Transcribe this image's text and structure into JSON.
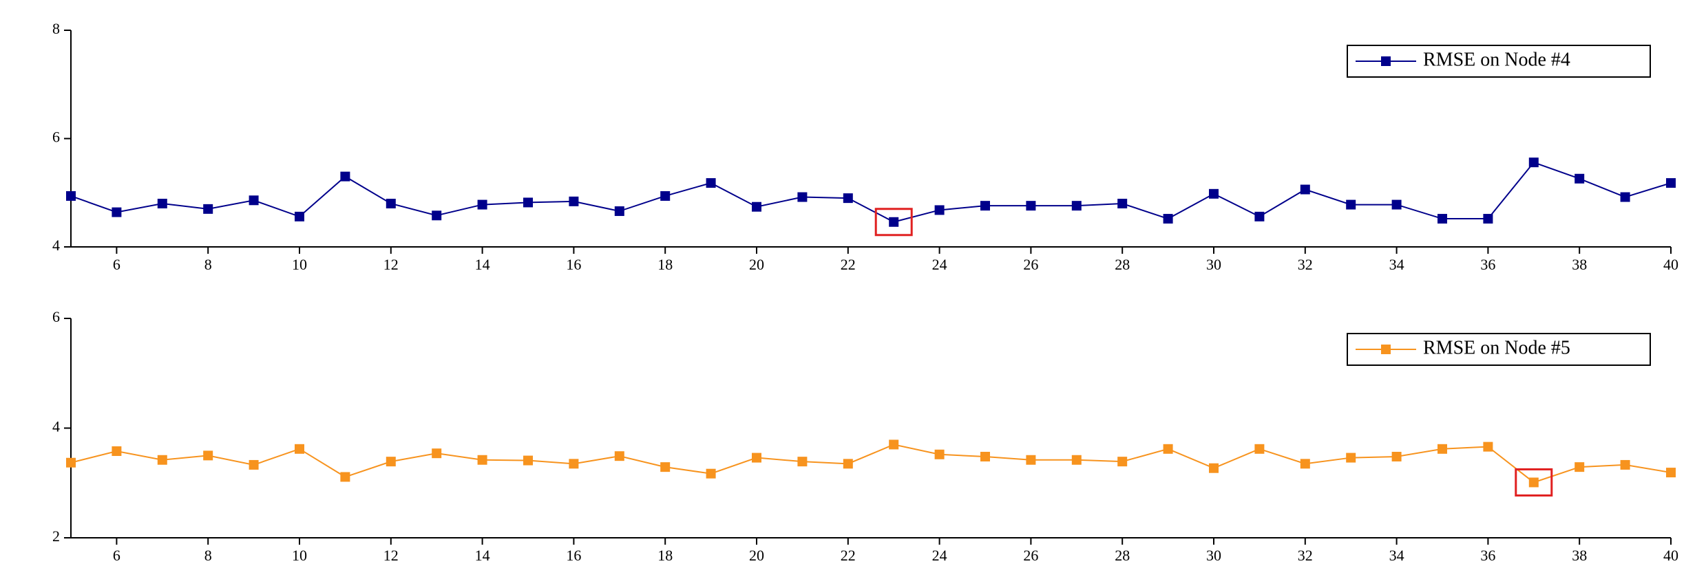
{
  "chart_data": [
    {
      "type": "line",
      "x": [
        5,
        6,
        7,
        8,
        9,
        10,
        11,
        12,
        13,
        14,
        15,
        16,
        17,
        18,
        19,
        20,
        21,
        22,
        23,
        24,
        25,
        26,
        27,
        28,
        29,
        30,
        31,
        32,
        33,
        34,
        35,
        36,
        37,
        38,
        39,
        40
      ],
      "series": [
        {
          "name": "RMSE on Node #4",
          "color": "#00008b",
          "values": [
            4.94,
            4.64,
            4.8,
            4.7,
            4.86,
            4.56,
            5.3,
            4.8,
            4.58,
            4.78,
            4.82,
            4.84,
            4.66,
            4.94,
            5.18,
            4.74,
            4.92,
            4.9,
            4.46,
            4.68,
            4.76,
            4.76,
            4.76,
            4.8,
            4.52,
            4.98,
            4.56,
            5.06,
            4.78,
            4.78,
            4.52,
            4.52,
            5.56,
            5.26,
            4.92,
            5.18
          ]
        }
      ],
      "xlim": [
        5,
        40
      ],
      "xticks": [
        6,
        8,
        10,
        12,
        14,
        16,
        18,
        20,
        22,
        24,
        26,
        28,
        30,
        32,
        34,
        36,
        38,
        40
      ],
      "ylim": [
        4,
        8
      ],
      "yticks": [
        4,
        6,
        8
      ],
      "legend": "upper right",
      "highlight": 23,
      "highlight_color": "#e02020"
    },
    {
      "type": "line",
      "x": [
        5,
        6,
        7,
        8,
        9,
        10,
        11,
        12,
        13,
        14,
        15,
        16,
        17,
        18,
        19,
        20,
        21,
        22,
        23,
        24,
        25,
        26,
        27,
        28,
        29,
        30,
        31,
        32,
        33,
        34,
        35,
        36,
        37,
        38,
        39,
        40
      ],
      "series": [
        {
          "name": "RMSE on Node #5",
          "color": "#f7931e",
          "values": [
            3.37,
            3.58,
            3.42,
            3.5,
            3.33,
            3.62,
            3.11,
            3.39,
            3.54,
            3.42,
            3.41,
            3.35,
            3.49,
            3.29,
            3.17,
            3.46,
            3.39,
            3.35,
            3.7,
            3.52,
            3.48,
            3.42,
            3.42,
            3.39,
            3.62,
            3.27,
            3.62,
            3.35,
            3.46,
            3.48,
            3.62,
            3.66,
            3.01,
            3.29,
            3.33,
            3.19
          ]
        }
      ],
      "xlim": [
        5,
        40
      ],
      "xticks": [
        6,
        8,
        10,
        12,
        14,
        16,
        18,
        20,
        22,
        24,
        26,
        28,
        30,
        32,
        34,
        36,
        38,
        40
      ],
      "ylim": [
        2,
        6
      ],
      "yticks": [
        2,
        4,
        6
      ],
      "legend": "upper right",
      "highlight": 37,
      "highlight_color": "#e02020"
    }
  ]
}
